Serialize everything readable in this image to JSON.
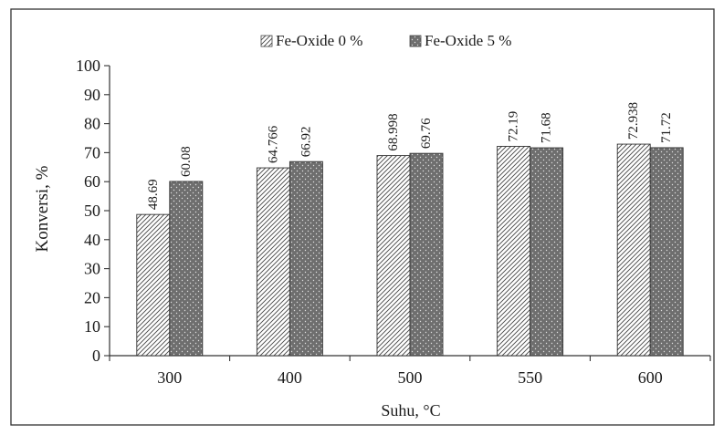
{
  "chart_data": {
    "type": "bar",
    "title": "",
    "xlabel": "Suhu, °C",
    "ylabel": "Konversi, %",
    "categories": [
      "300",
      "400",
      "500",
      "550",
      "600"
    ],
    "series": [
      {
        "name": "Fe-Oxide 0 %",
        "values": [
          48.69,
          64.766,
          68.998,
          72.19,
          72.938
        ],
        "labels": [
          "48.69",
          "64.766",
          "68.998",
          "72.19",
          "72.938"
        ],
        "pattern": "diagonal-hatch"
      },
      {
        "name": "Fe-Oxide 5 %",
        "values": [
          60.08,
          66.92,
          69.76,
          71.68,
          71.72
        ],
        "labels": [
          "60.08",
          "66.92",
          "69.76",
          "71.68",
          "71.72"
        ],
        "pattern": "dotted-dark"
      }
    ],
    "ylim": [
      0,
      100
    ],
    "yticks": [
      "0",
      "10",
      "20",
      "30",
      "40",
      "50",
      "60",
      "70",
      "80",
      "90",
      "100"
    ],
    "grid": false,
    "legend_position": "top-center",
    "colors": {
      "fill_light": "#ffffff",
      "fill_dark": "#6e6e6e",
      "stroke": "#333333"
    }
  }
}
